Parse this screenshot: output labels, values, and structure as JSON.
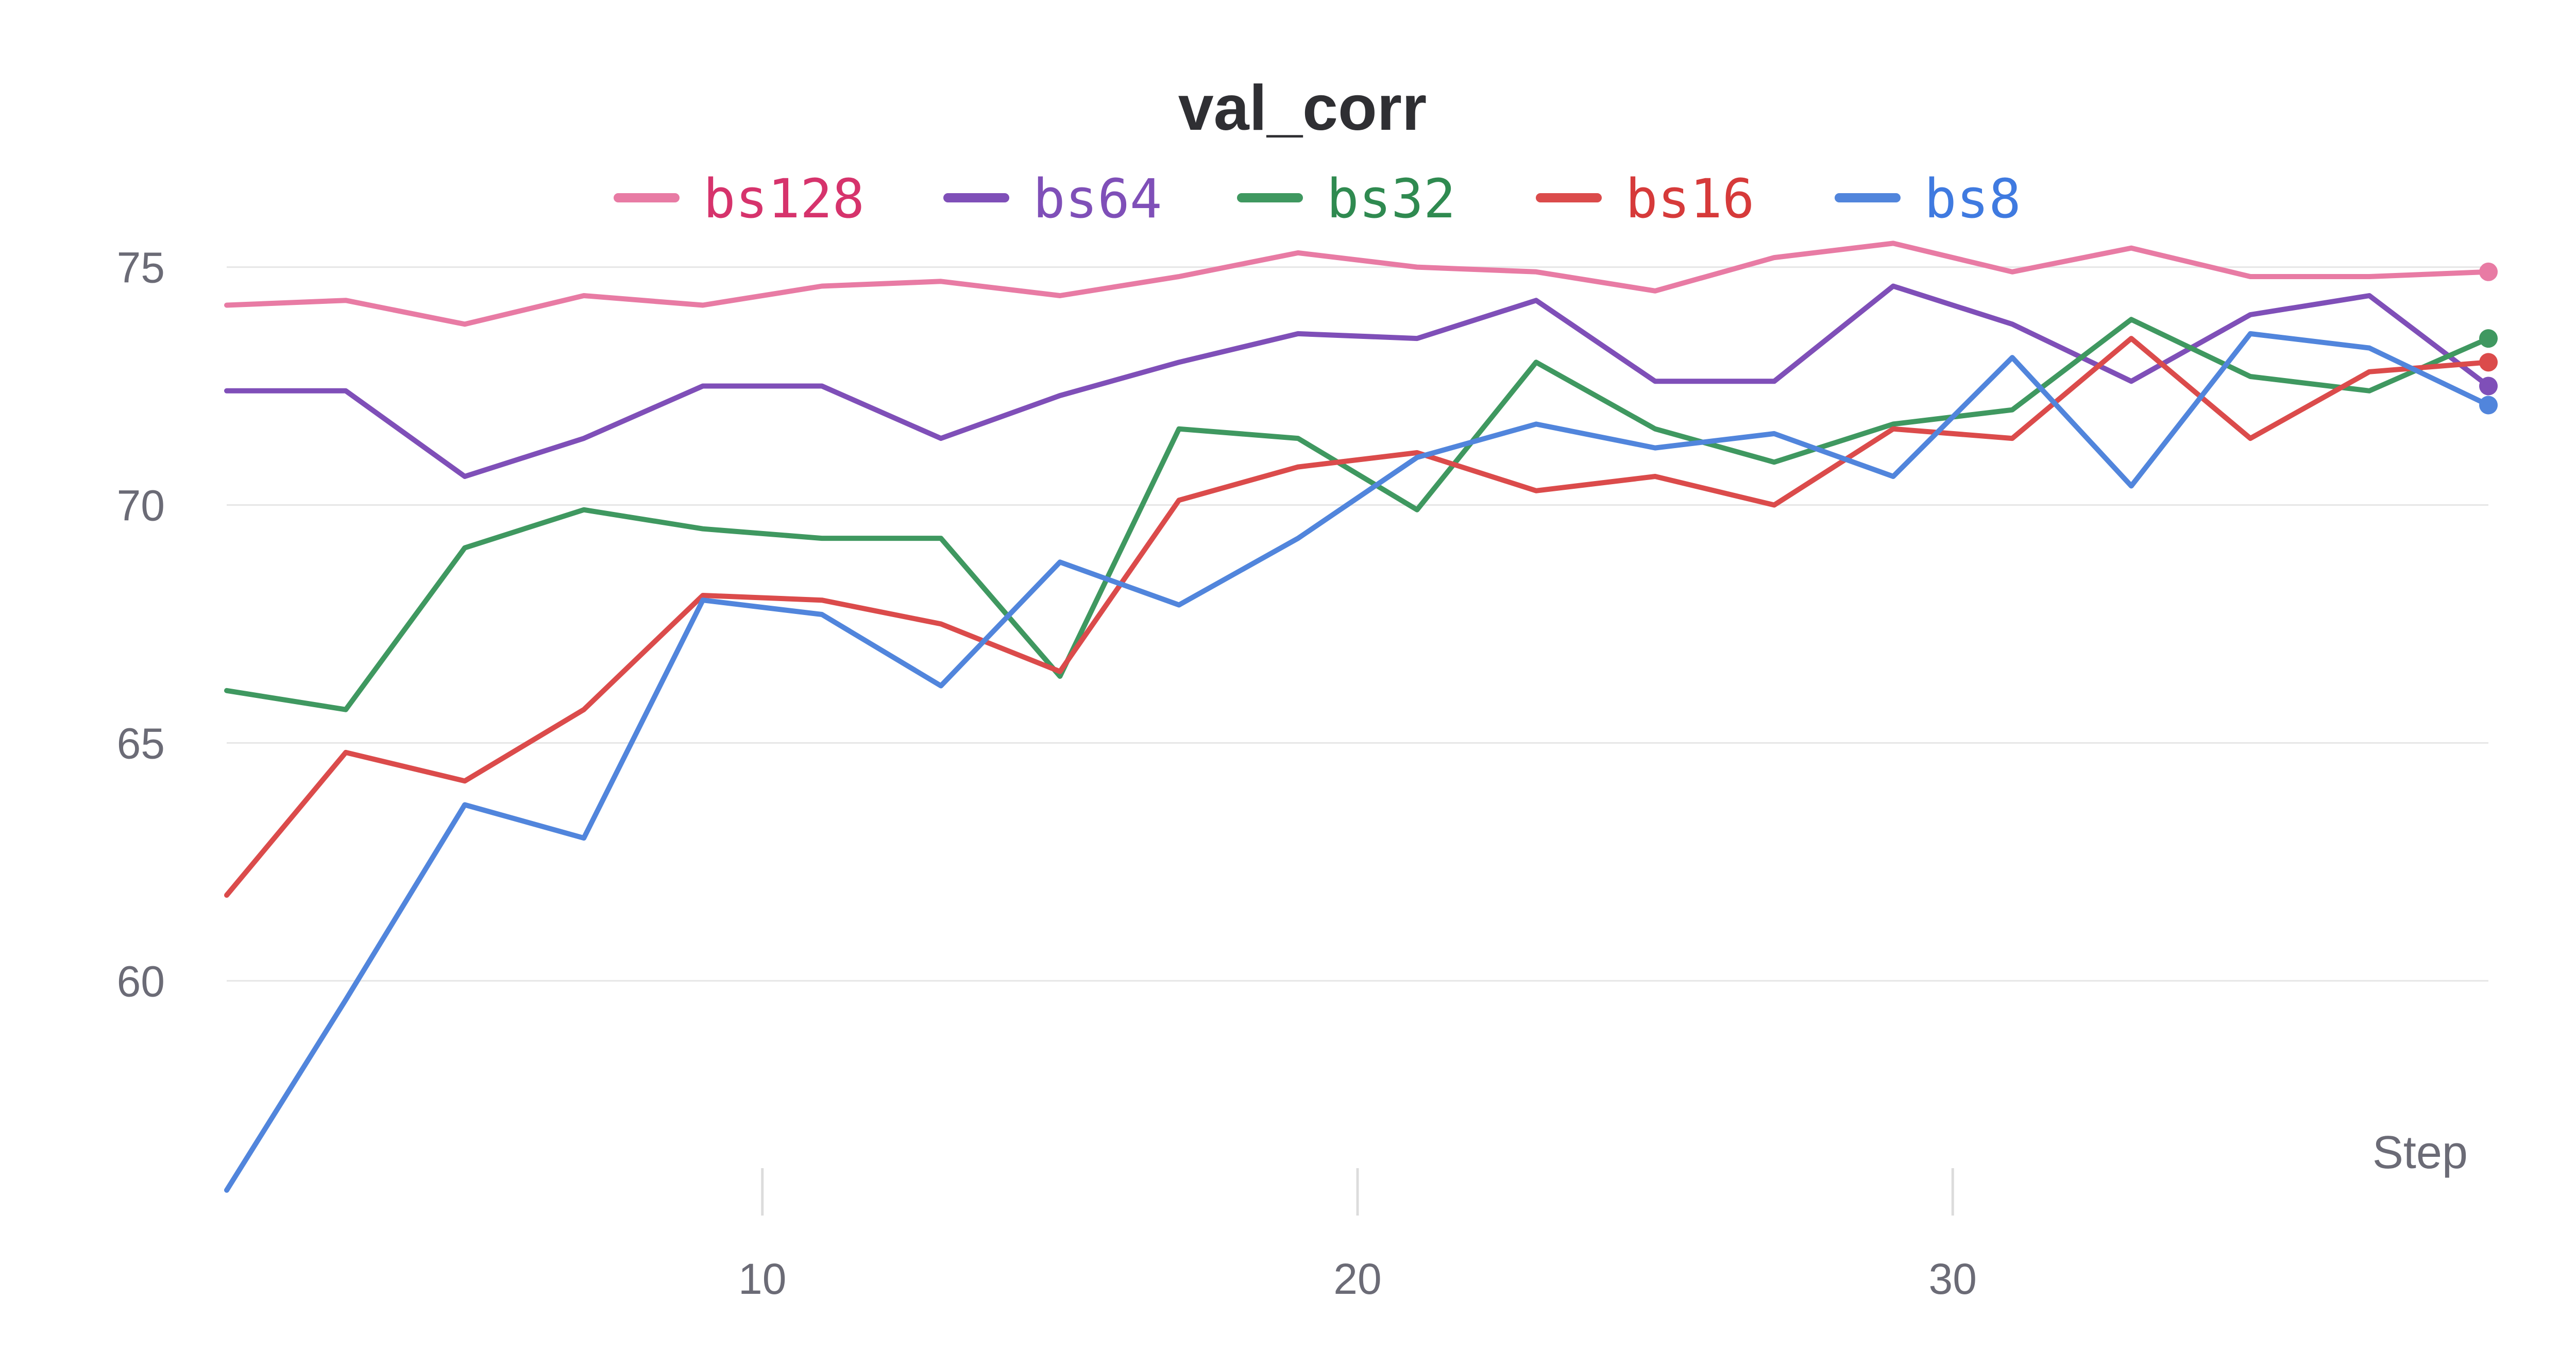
{
  "chart_data": {
    "type": "line",
    "title": "val_corr",
    "xlabel": "Step",
    "ylabel": "",
    "xlim": [
      1,
      39
    ],
    "ylim": [
      55.5,
      76.5
    ],
    "yticks": [
      60,
      65,
      70,
      75
    ],
    "xticks": [
      10,
      20,
      30
    ],
    "grid": true,
    "legend": "top-center",
    "x": [
      1,
      3,
      5,
      7,
      9,
      11,
      13,
      15,
      17,
      19,
      21,
      23,
      25,
      27,
      29,
      31,
      33,
      35,
      37,
      39
    ],
    "series": [
      {
        "name": "bs128",
        "color": "#e87ba4",
        "label_color": "#d6336c",
        "values": [
          74.2,
          74.3,
          73.8,
          74.4,
          74.2,
          74.6,
          74.7,
          74.4,
          74.8,
          75.3,
          75.0,
          74.9,
          74.5,
          75.2,
          75.5,
          74.9,
          75.4,
          74.8,
          74.8,
          74.9
        ]
      },
      {
        "name": "bs64",
        "color": "#7f4fb8",
        "label_color": "#7f4fb8",
        "values": [
          72.4,
          72.4,
          70.6,
          71.4,
          72.5,
          72.5,
          71.4,
          72.3,
          73.0,
          73.6,
          73.5,
          74.3,
          72.6,
          72.6,
          74.6,
          73.8,
          72.6,
          74.0,
          74.4,
          72.5
        ]
      },
      {
        "name": "bs32",
        "color": "#3f9860",
        "label_color": "#2f8a50",
        "values": [
          66.1,
          65.7,
          69.1,
          69.9,
          69.5,
          69.3,
          69.3,
          66.4,
          71.6,
          71.4,
          69.9,
          73.0,
          71.6,
          70.9,
          71.7,
          72.0,
          73.9,
          72.7,
          72.4,
          73.5
        ]
      },
      {
        "name": "bs16",
        "color": "#db4b4b",
        "label_color": "#d63a3a",
        "values": [
          61.8,
          64.8,
          64.2,
          65.7,
          68.1,
          68.0,
          67.5,
          66.5,
          70.1,
          70.8,
          71.1,
          70.3,
          70.6,
          70.0,
          71.6,
          71.4,
          73.5,
          71.4,
          72.8,
          73.0
        ]
      },
      {
        "name": "bs8",
        "color": "#5185dc",
        "label_color": "#3f7ae0",
        "values": [
          55.6,
          59.6,
          63.7,
          63.0,
          68.0,
          67.7,
          66.2,
          68.8,
          67.9,
          69.3,
          71.0,
          71.7,
          71.2,
          71.5,
          70.6,
          73.1,
          70.4,
          73.6,
          73.3,
          72.1
        ]
      }
    ]
  }
}
